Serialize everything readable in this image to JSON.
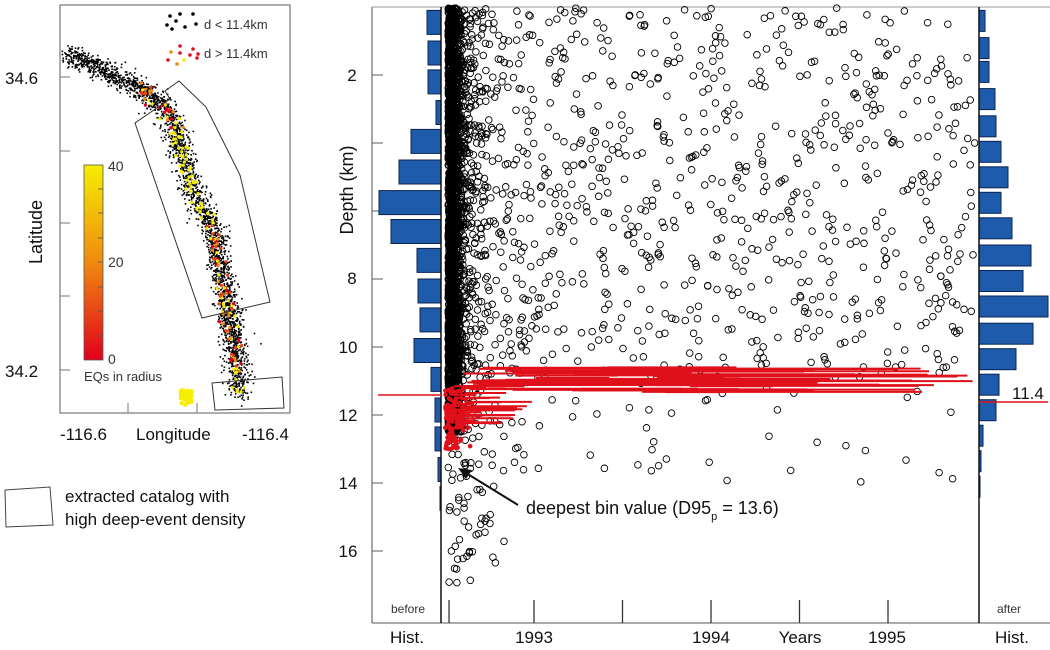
{
  "colors": {
    "hist_bar": "#1f5bab",
    "hist_edge": "#0b2350",
    "threshold_line": "#e0101a",
    "point": "#000000",
    "colorbar_low": "#e0001b",
    "colorbar_mid": "#f08a10",
    "colorbar_high": "#f5ee00"
  },
  "map": {
    "ylabel": "Latitude",
    "xlabel": "Longitude",
    "x_ticks": [
      "-116.6",
      "-116.4"
    ],
    "y_ticks": [
      "34.6",
      "34.2"
    ],
    "legend": [
      {
        "label": "d < 11.4km",
        "color": "#000000"
      },
      {
        "label": "d > 11.4km",
        "color": "#e0101a"
      }
    ],
    "colorbar": {
      "label": "EQs in radius",
      "ticks": [
        "40",
        "20",
        "0"
      ],
      "range": [
        0,
        40
      ]
    },
    "box_legend": [
      "extracted catalog with",
      "high deep-event density"
    ]
  },
  "chart_data": {
    "type": "scatter",
    "ylabel": "Depth (km)",
    "xlabel": "Years",
    "x_ticks": [
      "1993",
      "1994",
      "1995"
    ],
    "xlim": [
      1992.5,
      1995.5
    ],
    "y_ticks": [
      "2",
      "8",
      "10",
      "12",
      "14",
      "16"
    ],
    "y_tick_values": [
      2,
      4,
      6,
      8,
      10,
      12,
      14,
      16
    ],
    "ylim": [
      0,
      18
    ],
    "y_inverted": true,
    "threshold_depth": 11.4,
    "threshold_label": "11.4",
    "annotation": {
      "text": "deepest bin value (D95",
      "sub": "p",
      "tail": " = 13.6)",
      "depth": 13.6
    },
    "hist_before": {
      "label": "before",
      "axis_label": "Hist.",
      "bin_top_km": [
        0.1,
        1.0,
        1.85,
        2.75,
        3.6,
        4.5,
        5.4,
        6.25,
        7.1,
        8.0,
        8.85,
        9.75,
        10.6,
        11.5,
        12.35,
        13.25,
        14.1
      ],
      "relative_count": [
        14,
        13,
        13,
        5,
        30,
        42,
        62,
        50,
        24,
        23,
        21,
        27,
        10,
        6,
        6,
        3,
        1
      ]
    },
    "hist_after": {
      "label": "after",
      "axis_label": "Hist.",
      "bin_top_km": [
        0.1,
        0.9,
        1.6,
        2.4,
        3.2,
        3.95,
        4.7,
        5.45,
        6.2,
        7.0,
        7.75,
        8.5,
        9.3,
        10.05,
        10.8,
        11.55,
        12.3,
        13.05,
        13.8
      ],
      "relative_count": [
        6,
        10,
        10,
        16,
        17,
        22,
        29,
        22,
        33,
        52,
        44,
        69,
        54,
        37,
        20,
        17,
        4,
        2,
        1
      ]
    }
  }
}
